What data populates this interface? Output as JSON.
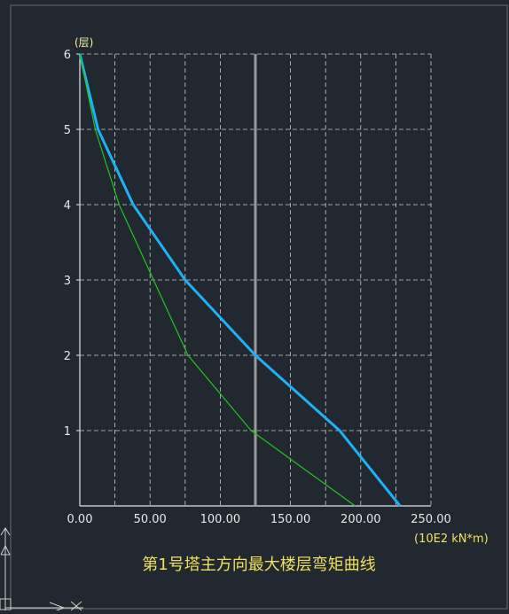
{
  "chart_data": {
    "type": "line",
    "title": "第1号塔主方向最大楼层弯矩曲线",
    "xlabel": "(10E2 kN*m)",
    "ylabel": "(层)",
    "xlim": [
      0,
      250
    ],
    "ylim": [
      0,
      6
    ],
    "x_ticks": [
      "0.00",
      "50.00",
      "100.00",
      "150.00",
      "200.00",
      "250.00"
    ],
    "y_ticks": [
      "1",
      "2",
      "3",
      "4",
      "5",
      "6"
    ],
    "grid": true,
    "reference_line": {
      "x": 125,
      "color": "#9a9a9a"
    },
    "series": [
      {
        "color": "#1fb0f5",
        "x": [
          228,
          185,
          125,
          75,
          38,
          13,
          0
        ],
        "y": [
          0,
          1,
          2,
          3,
          4,
          5,
          6
        ]
      },
      {
        "color": "#1ec81e",
        "x": [
          196,
          122,
          77,
          28,
          11,
          0
        ],
        "y": [
          0,
          1,
          2,
          4,
          5,
          6
        ]
      }
    ]
  },
  "colors": {
    "background": "#212830",
    "grid": "#c8c8c8",
    "axis": "#e6e6e6"
  }
}
